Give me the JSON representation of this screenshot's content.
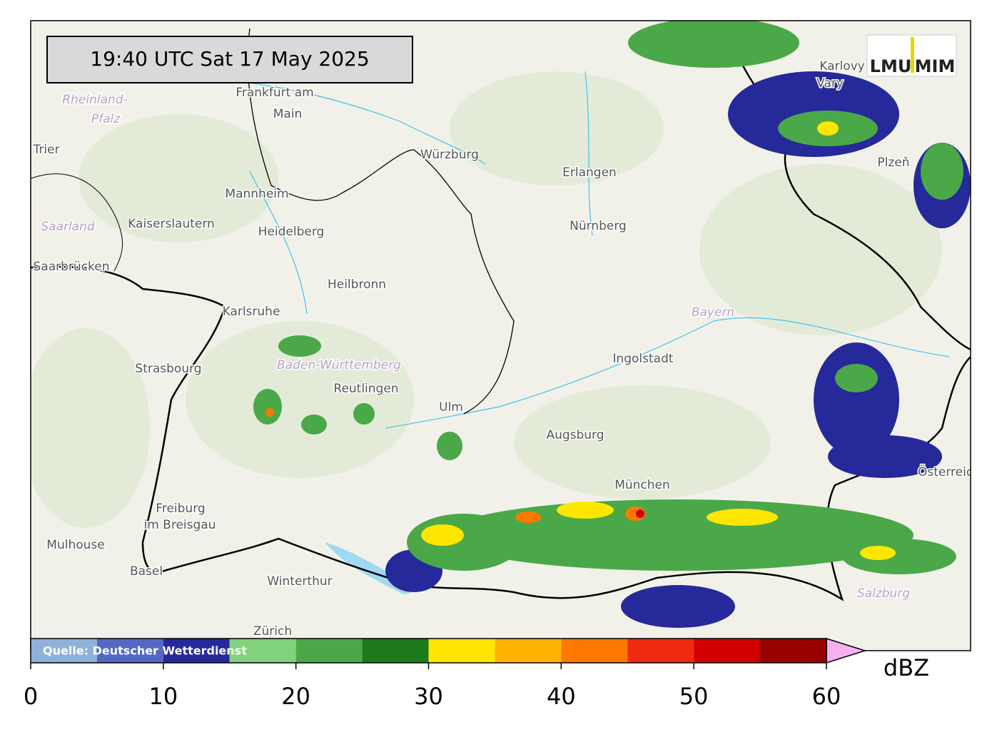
{
  "timestamp": "19:40 UTC  Sat 17 May 2025",
  "logo": {
    "left": "LMU",
    "right": "MIM"
  },
  "places": [
    "Rheinland-",
    "Pfalz",
    "Trier",
    "Frankfurt am",
    "Main",
    "Saarland",
    "Kaiserslautern",
    "Saarbrücken",
    "Mannheim",
    "Heidelberg",
    "Würzburg",
    "Erlangen",
    "Nürnberg",
    "Heilbronn",
    "Karlsruhe",
    "Strasbourg",
    "Baden-Württemberg",
    "Reutlingen",
    "Ulm",
    "Augsburg",
    "Ingolstadt",
    "Bayern",
    "München",
    "Freiburg",
    "im Breisgau",
    "Mulhouse",
    "Basel",
    "Winterthur",
    "Zürich",
    "Salzburg",
    "Plzeň",
    "Karlovy",
    "Vary",
    "Österreich"
  ],
  "colorbar": {
    "source": "Quelle: Deutscher Wetterdienst",
    "label": "dBZ",
    "bounds": [
      0,
      5,
      10,
      15,
      20,
      25,
      30,
      35,
      40,
      45,
      50,
      55,
      60
    ],
    "colors": [
      "#8fb0db",
      "#5468c2",
      "#25299a",
      "#82d17d",
      "#4aa848",
      "#1c7a1c",
      "#ffe600",
      "#ffb300",
      "#ff7800",
      "#f02a10",
      "#d20000",
      "#980000"
    ],
    "extend_color": "#f7b0ef",
    "ticks": [
      0,
      10,
      20,
      30,
      40,
      50,
      60
    ]
  }
}
